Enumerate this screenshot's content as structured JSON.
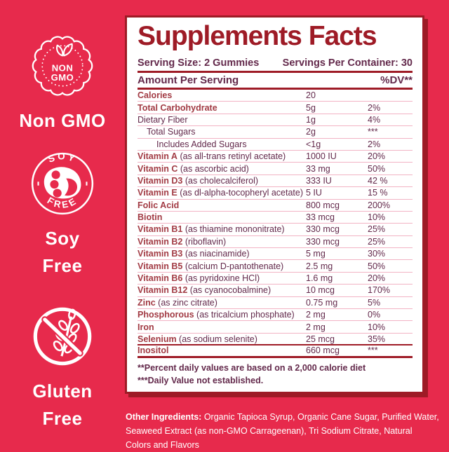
{
  "colors": {
    "bg": "#E72A4C",
    "dark_red": "#9E1B26",
    "plum": "#63294B",
    "name_red": "#A23B44",
    "divider": "#F2B3C4",
    "white": "#FFFFFF"
  },
  "badges": {
    "non_gmo": {
      "seal_line1": "NON",
      "seal_line2": "GMO",
      "label": "Non GMO"
    },
    "soy_free": {
      "arc_top": "SOY",
      "arc_bottom": "FREE",
      "label_line1": "Soy",
      "label_line2": "Free"
    },
    "gluten_free": {
      "label_line1": "Gluten",
      "label_line2": "Free"
    }
  },
  "panel": {
    "title": "Supplements Facts",
    "serving_size": "Serving Size: 2 Gummies",
    "servings_per_container": "Servings Per Container: 30",
    "amount_header": "Amount Per Serving",
    "dv_header": "%DV**",
    "rows": [
      {
        "name": "Calories",
        "desc": "",
        "amount": "20",
        "dv": "",
        "bold": true,
        "indent": 0,
        "rule": "thin"
      },
      {
        "name": "Total Carbohydrate",
        "desc": "",
        "amount": "5g",
        "dv": "2%",
        "bold": true,
        "indent": 0,
        "rule": "thin"
      },
      {
        "name": "Dietary Fiber",
        "desc": "",
        "amount": "1g",
        "dv": "4%",
        "bold": false,
        "indent": 0,
        "rule": "thin"
      },
      {
        "name": "Total Sugars",
        "desc": "",
        "amount": "2g",
        "dv": "***",
        "bold": false,
        "indent": 1,
        "rule": "thin"
      },
      {
        "name": "Includes Added Sugars",
        "desc": "",
        "amount": "<1g",
        "dv": "2%",
        "bold": false,
        "indent": 2,
        "rule": "thin"
      },
      {
        "name": "Vitamin A",
        "desc": "(as all-trans retinyl acetate)",
        "amount": "1000 IU",
        "dv": "20%",
        "bold": true,
        "indent": 0,
        "rule": "thin"
      },
      {
        "name": "Vitamin C",
        "desc": "(as ascorbic acid)",
        "amount": "33 mg",
        "dv": "50%",
        "bold": true,
        "indent": 0,
        "rule": "thin"
      },
      {
        "name": "Vitamin D3",
        "desc": "(as cholecalciferol)",
        "amount": "333 IU",
        "dv": "42 %",
        "bold": true,
        "indent": 0,
        "rule": "thin"
      },
      {
        "name": "Vitamin E",
        "desc": "(as dl-alpha-tocopheryl acetate)",
        "amount": "5 IU",
        "dv": "15 %",
        "bold": true,
        "indent": 0,
        "rule": "thin"
      },
      {
        "name": "Folic Acid",
        "desc": "",
        "amount": "800 mcg",
        "dv": "200%",
        "bold": true,
        "indent": 0,
        "rule": "thin"
      },
      {
        "name": "Biotin",
        "desc": "",
        "amount": "33 mcg",
        "dv": "10%",
        "bold": true,
        "indent": 0,
        "rule": "thin"
      },
      {
        "name": "Vitamin B1",
        "desc": "(as thiamine mononitrate)",
        "amount": "330 mcg",
        "dv": "25%",
        "bold": true,
        "indent": 0,
        "rule": "thin"
      },
      {
        "name": "Vitamin B2",
        "desc": "(riboflavin)",
        "amount": "330 mcg",
        "dv": "25%",
        "bold": true,
        "indent": 0,
        "rule": "thin"
      },
      {
        "name": "Vitamin B3",
        "desc": "(as niacinamide)",
        "amount": "5 mg",
        "dv": "30%",
        "bold": true,
        "indent": 0,
        "rule": "thin"
      },
      {
        "name": "Vitamin B5",
        "desc": "(calcium D-pantothenate)",
        "amount": "2.5 mg",
        "dv": "50%",
        "bold": true,
        "indent": 0,
        "rule": "thin"
      },
      {
        "name": "Vitamin B6",
        "desc": "(as pyridoxine HCl)",
        "amount": "1.6 mg",
        "dv": "20%",
        "bold": true,
        "indent": 0,
        "rule": "thin"
      },
      {
        "name": "Vitamin B12",
        "desc": "(as cyanocobalmine)",
        "amount": "10 mcg",
        "dv": "170%",
        "bold": true,
        "indent": 0,
        "rule": "thin"
      },
      {
        "name": "Zinc",
        "desc": "(as zinc citrate)",
        "amount": "0.75 mg",
        "dv": "5%",
        "bold": true,
        "indent": 0,
        "rule": "thin"
      },
      {
        "name": "Phosphorous",
        "desc": "(as tricalcium phosphate)",
        "amount": "2 mg",
        "dv": "0%",
        "bold": true,
        "indent": 0,
        "rule": "thin"
      },
      {
        "name": "Iron",
        "desc": "",
        "amount": "2 mg",
        "dv": "10%",
        "bold": true,
        "indent": 0,
        "rule": "thin"
      },
      {
        "name": "Selenium",
        "desc": "(as sodium selenite)",
        "amount": "25 mcg",
        "dv": "35%",
        "bold": true,
        "indent": 0,
        "rule": "thick"
      },
      {
        "name": "Inositol",
        "desc": "",
        "amount": "660 mcg",
        "dv": "***",
        "bold": true,
        "indent": 0,
        "rule": "final"
      }
    ],
    "footnotes": [
      "**Percent daily values are based on a 2,000 calorie diet",
      "***Daily Value not established."
    ]
  },
  "other_ingredients": {
    "label": "Other Ingredients:",
    "text": " Organic Tapioca Syrup, Organic Cane Sugar, Purified Water, Seaweed Extract (as non-GMO Carrageenan), Tri Sodium Citrate, Natural Colors and Flavors"
  }
}
